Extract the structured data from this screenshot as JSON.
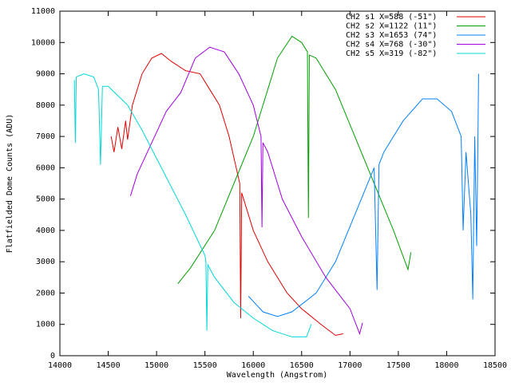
{
  "chart_data": {
    "type": "line",
    "x_label": "Wavelength (Angstrom)",
    "y_label": "Flatfielded Dome Counts (ADU)",
    "xlim": [
      14000,
      18500
    ],
    "ylim": [
      0,
      11000
    ],
    "xticks": [
      14000,
      14500,
      15000,
      15500,
      16000,
      16500,
      17000,
      17500,
      18000,
      18500
    ],
    "yticks": [
      0,
      1000,
      2000,
      3000,
      4000,
      5000,
      6000,
      7000,
      8000,
      9000,
      10000,
      11000
    ],
    "grid": false,
    "legend": "top-right",
    "series": [
      {
        "name": "CH2 s1 X=588 (-51\")",
        "color": "#e00000",
        "x": [
          14530,
          14560,
          14600,
          14640,
          14680,
          14700,
          14750,
          14850,
          14950,
          15050,
          15150,
          15300,
          15450,
          15550,
          15650,
          15750,
          15860,
          15870,
          15880,
          16000,
          16150,
          16350,
          16500,
          16700,
          16850,
          16930
        ],
        "values": [
          7000,
          6500,
          7300,
          6600,
          7500,
          6900,
          8000,
          9000,
          9500,
          9650,
          9400,
          9100,
          9000,
          8500,
          8000,
          7000,
          5500,
          1200,
          5200,
          4000,
          3000,
          2000,
          1500,
          1000,
          650,
          700
        ]
      },
      {
        "name": "CH2 s2 X=1122 (11\")",
        "color": "#00a000",
        "x": [
          15220,
          15350,
          15600,
          15800,
          16000,
          16150,
          16250,
          16400,
          16500,
          16560,
          16570,
          16580,
          16650,
          16850,
          17050,
          17250,
          17450,
          17600,
          17630
        ],
        "values": [
          2300,
          2800,
          4000,
          5500,
          7000,
          8500,
          9500,
          10200,
          10000,
          9700,
          4400,
          9600,
          9500,
          8500,
          7000,
          5500,
          4000,
          2750,
          3300
        ]
      },
      {
        "name": "CH2 s3 X=1653 (74\")",
        "color": "#0080ff",
        "x": [
          15950,
          16100,
          16250,
          16400,
          16650,
          16850,
          17050,
          17250,
          17280,
          17300,
          17350,
          17550,
          17750,
          17900,
          18050,
          18150,
          18170,
          18200,
          18250,
          18270,
          18290,
          18310,
          18320,
          18330
        ],
        "values": [
          1900,
          1400,
          1250,
          1400,
          2000,
          3000,
          4500,
          6000,
          2100,
          6100,
          6500,
          7500,
          8200,
          8200,
          7800,
          7000,
          4000,
          6500,
          4500,
          1800,
          7000,
          3500,
          6000,
          9000
        ]
      },
      {
        "name": "CH2 s4 X=768 (-30\")",
        "color": "#a000e0",
        "x": [
          14730,
          14800,
          14950,
          15100,
          15250,
          15400,
          15550,
          15700,
          15850,
          16000,
          16080,
          16090,
          16100,
          16150,
          16300,
          16500,
          16750,
          17000,
          17100,
          17130
        ],
        "values": [
          5100,
          5800,
          6800,
          7800,
          8400,
          9500,
          9850,
          9700,
          9000,
          8000,
          7000,
          4100,
          6800,
          6500,
          5000,
          3800,
          2500,
          1500,
          700,
          1050
        ]
      },
      {
        "name": "CH2 s5 X=319 (-82\")",
        "color": "#00d8d8",
        "x": [
          14150,
          14160,
          14170,
          14250,
          14350,
          14400,
          14420,
          14440,
          14500,
          14600,
          14700,
          14850,
          15050,
          15300,
          15500,
          15510,
          15520,
          15530,
          15600,
          15800,
          16000,
          16200,
          16400,
          16550,
          16600
        ],
        "values": [
          8800,
          6800,
          8900,
          9000,
          8900,
          8500,
          6100,
          8600,
          8600,
          8300,
          8000,
          7200,
          6000,
          4500,
          3200,
          3000,
          800,
          2900,
          2500,
          1700,
          1200,
          800,
          600,
          600,
          1000
        ]
      }
    ]
  }
}
